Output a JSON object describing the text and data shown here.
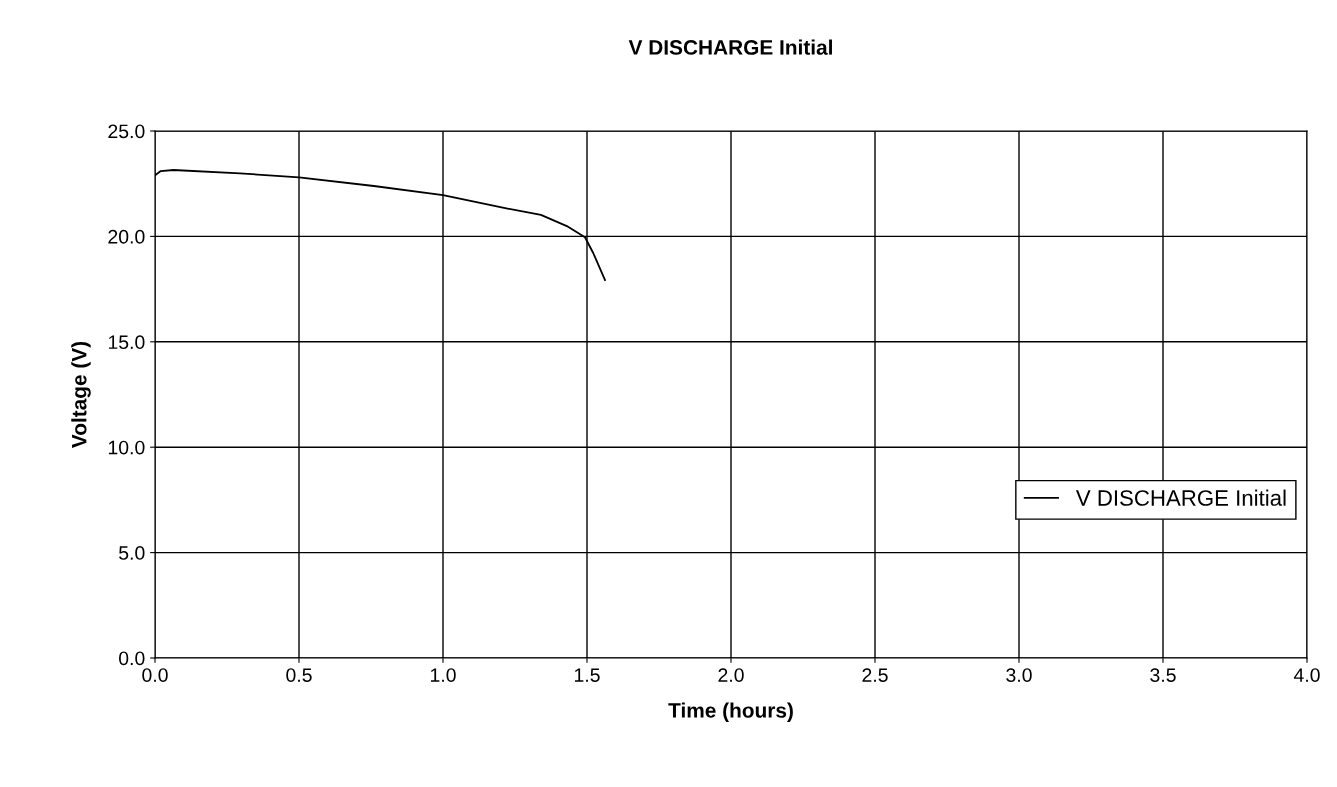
{
  "chart_data": {
    "type": "line",
    "title": "V DISCHARGE Initial",
    "xlabel": "Time (hours)",
    "ylabel": "Voltage (V)",
    "series": [
      {
        "name": "V DISCHARGE Initial",
        "color": "#000000",
        "x": [
          0.0,
          0.02,
          0.064,
          0.295,
          0.5,
          0.76,
          1.0,
          1.22,
          1.34,
          1.43,
          1.493,
          1.522,
          1.5625
        ],
        "values": [
          22.9,
          23.1,
          23.15,
          22.99,
          22.8,
          22.39,
          21.96,
          21.33,
          21.02,
          20.49,
          19.96,
          19.2,
          17.93
        ]
      }
    ],
    "xlim": [
      0.0,
      4.0
    ],
    "xticks": [
      {
        "value": 0.0,
        "label": "0.0"
      },
      {
        "value": 0.5,
        "label": "0.5"
      },
      {
        "value": 1.0,
        "label": "1.0"
      },
      {
        "value": 1.5,
        "label": "1.5"
      },
      {
        "value": 2.0,
        "label": "2.0"
      },
      {
        "value": 2.5,
        "label": "2.5"
      },
      {
        "value": 3.0,
        "label": "3.0"
      },
      {
        "value": 3.5,
        "label": "3.5"
      },
      {
        "value": 4.0,
        "label": "4.0"
      }
    ],
    "ylim": [
      0.0,
      25.0
    ],
    "yticks": [
      {
        "value": 0.0,
        "label": "0.0"
      },
      {
        "value": 5.0,
        "label": "5.0"
      },
      {
        "value": 10.0,
        "label": "10.0"
      },
      {
        "value": 15.0,
        "label": "15.0"
      },
      {
        "value": 20.0,
        "label": "20.0"
      },
      {
        "value": 25.0,
        "label": "25.0"
      }
    ],
    "grid": true,
    "legend": "right",
    "marker": "none",
    "line_style": "solid"
  }
}
